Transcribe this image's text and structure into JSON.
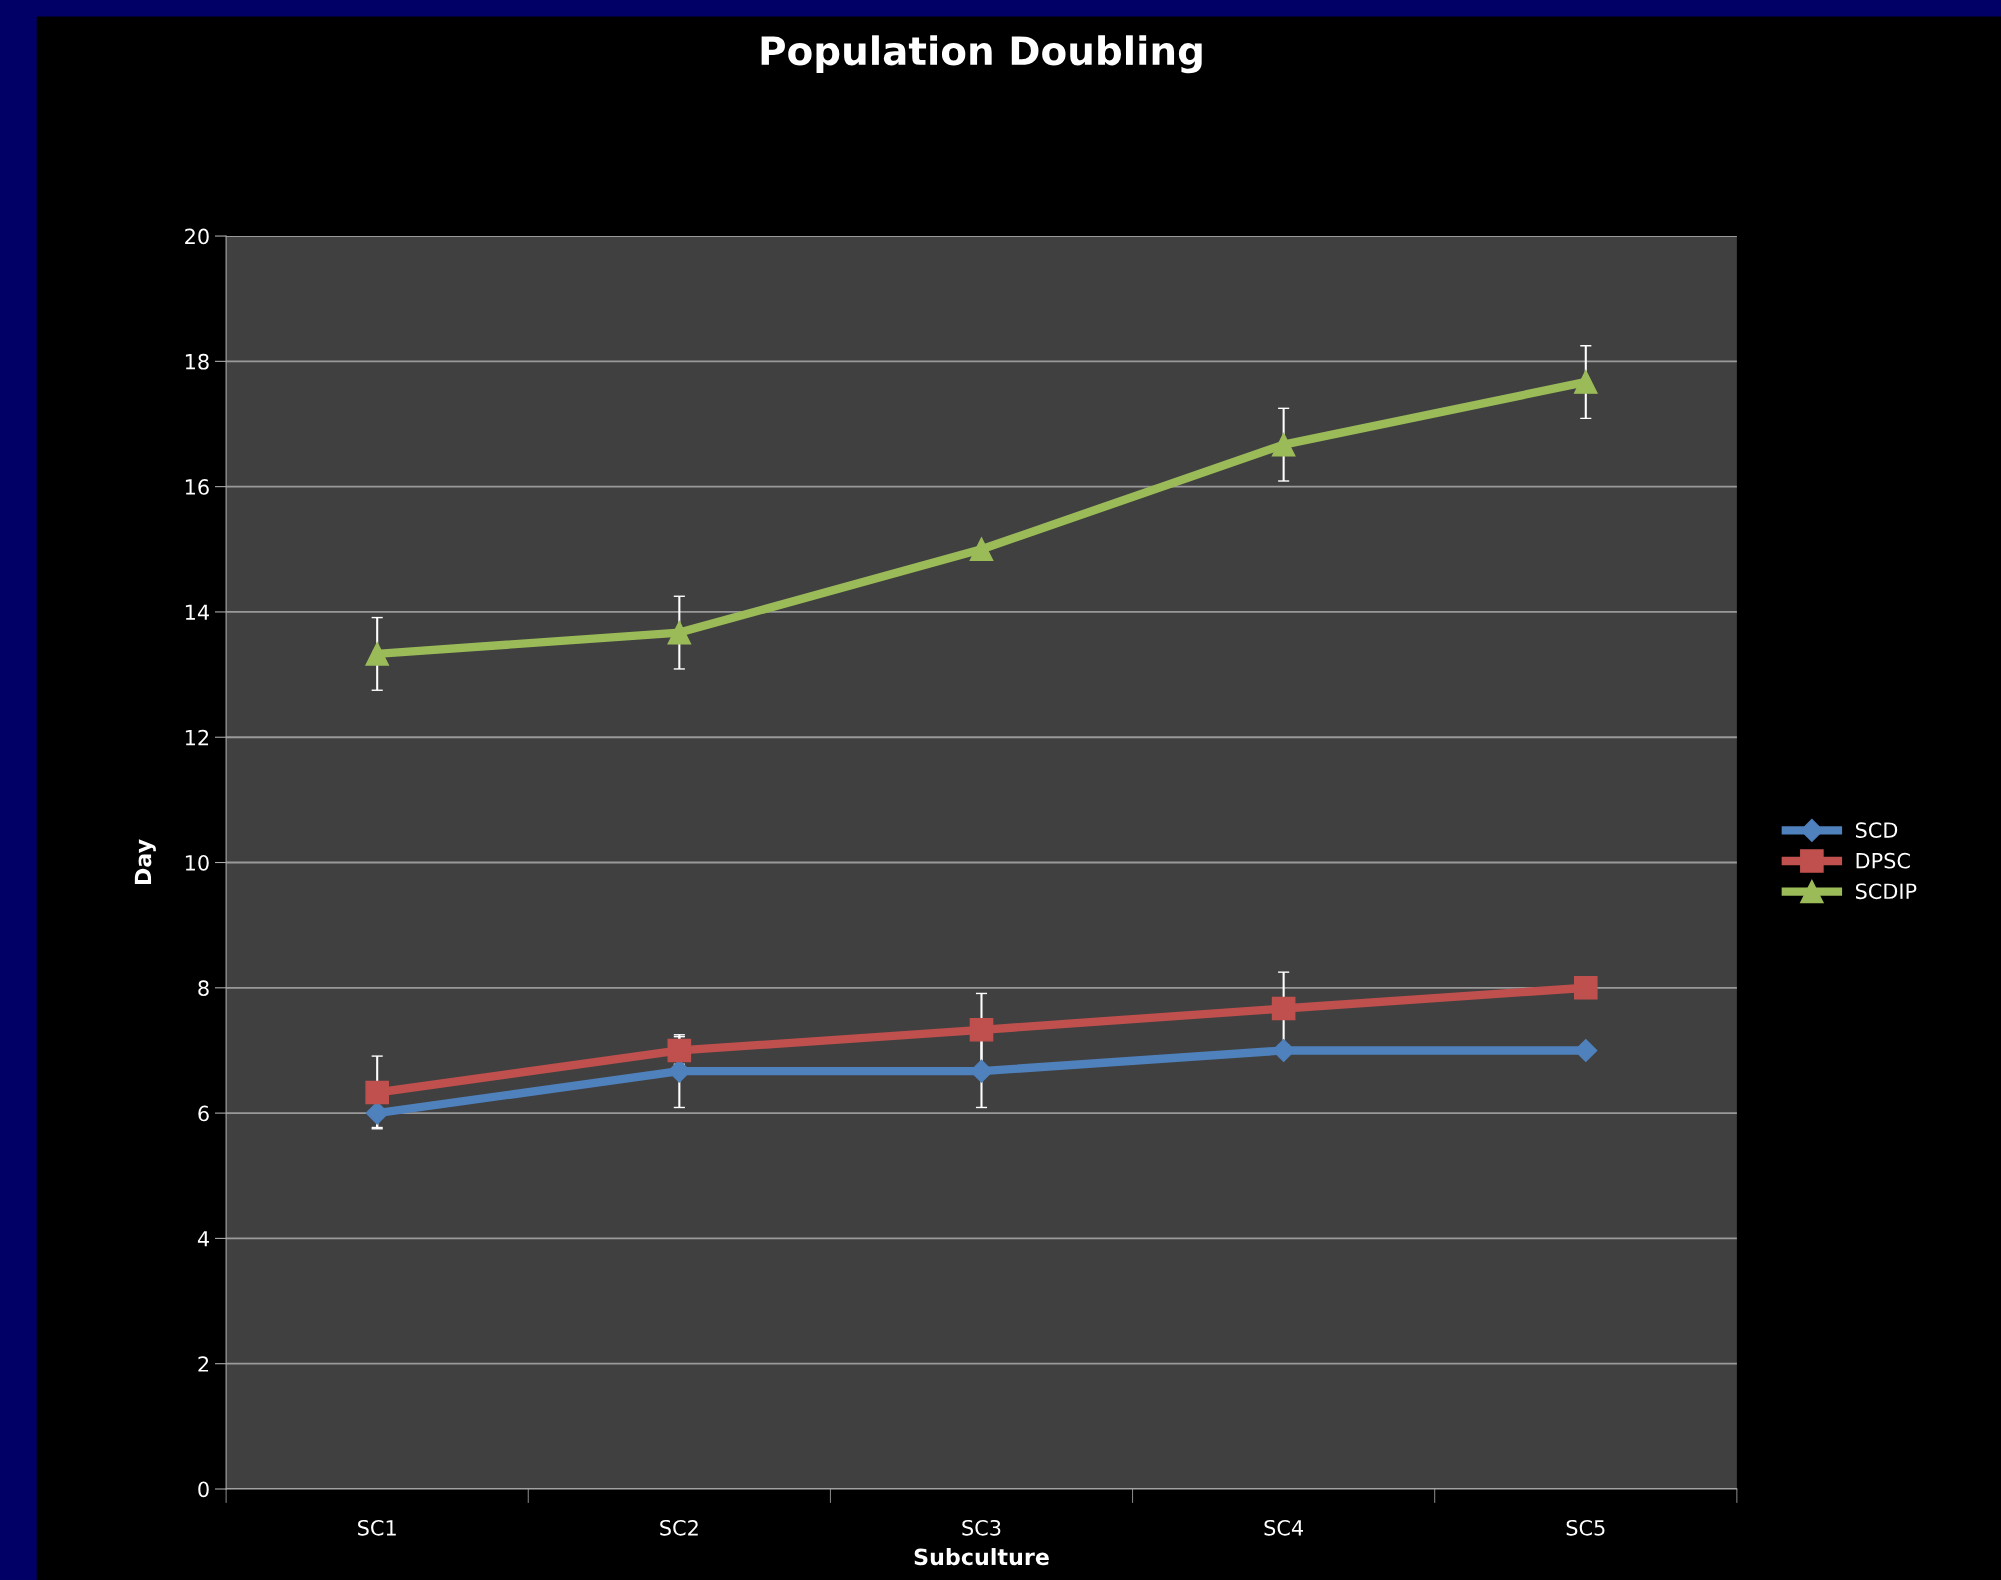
{
  "chart_data": {
    "type": "line",
    "title": "Population Doubling",
    "xlabel": "Subculture",
    "ylabel": "Day",
    "categories": [
      "SC1",
      "SC2",
      "SC3",
      "SC4",
      "SC5"
    ],
    "series": [
      {
        "name": "SCD",
        "color": "#4f81bd",
        "marker": "diamond",
        "values": [
          6,
          6.67,
          6.67,
          7,
          7
        ],
        "errors": [
          0.23,
          0.58,
          0.58,
          null,
          null
        ]
      },
      {
        "name": "DPSC",
        "color": "#c0504d",
        "marker": "square",
        "values": [
          6.33,
          7,
          7.33,
          7.67,
          8
        ],
        "errors": [
          0.58,
          0.22,
          0.58,
          0.58,
          null
        ]
      },
      {
        "name": "SCDIP",
        "color": "#9bbb59",
        "marker": "triangle",
        "values": [
          13.33,
          13.67,
          15,
          16.67,
          17.67
        ],
        "errors": [
          0.58,
          0.58,
          null,
          0.58,
          0.58
        ]
      }
    ],
    "ylim": [
      0,
      20
    ],
    "yticks": [
      0,
      2,
      4,
      6,
      8,
      10,
      12,
      14,
      16,
      18,
      20
    ],
    "grid": "y",
    "legend": "right"
  }
}
